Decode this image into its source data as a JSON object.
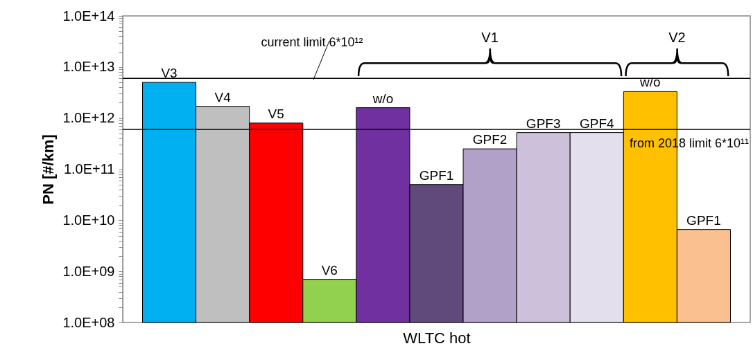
{
  "chart_data": {
    "type": "bar",
    "xlabel": "WLTC hot",
    "ylabel": "PN [#/km]",
    "categories": [
      "V3",
      "V4",
      "V5",
      "V6",
      "w/o",
      "GPF1",
      "GPF2",
      "GPF3",
      "GPF4",
      "w/o",
      "GPF1"
    ],
    "values": [
      5000000000000.0,
      1700000000000.0,
      800000000000.0,
      700000000.0,
      1600000000000.0,
      50000000000.0,
      250000000000.0,
      520000000000.0,
      520000000000.0,
      3300000000000.0,
      6600000000.0
    ],
    "colors": [
      "#00b0f0",
      "#bfbfbf",
      "#ff0000",
      "#92d050",
      "#7030a0",
      "#604a7b",
      "#b1a0c7",
      "#ccc0da",
      "#e4dfec",
      "#ffc000",
      "#fac090"
    ],
    "log": "y",
    "ylim": [
      100000000.0,
      100000000000000.0
    ],
    "yticks": [
      {
        "value": 100000000.0,
        "label": "1.0E+08"
      },
      {
        "value": 200000000.0,
        "label": null
      },
      {
        "value": 300000000.0,
        "label": null
      },
      {
        "value": 400000000.0,
        "label": null
      },
      {
        "value": 500000000.0,
        "label": null
      },
      {
        "value": 600000000.0,
        "label": null
      },
      {
        "value": 700000000.0,
        "label": null
      },
      {
        "value": 800000000.0,
        "label": null
      },
      {
        "value": 900000000.0,
        "label": null
      },
      {
        "value": 1000000000.0,
        "label": "1.0E+09"
      },
      {
        "value": 2000000000.0,
        "label": null
      },
      {
        "value": 3000000000.0,
        "label": null
      },
      {
        "value": 4000000000.0,
        "label": null
      },
      {
        "value": 5000000000.0,
        "label": null
      },
      {
        "value": 6000000000.0,
        "label": null
      },
      {
        "value": 7000000000.0,
        "label": null
      },
      {
        "value": 8000000000.0,
        "label": null
      },
      {
        "value": 9000000000.0,
        "label": null
      },
      {
        "value": 10000000000.0,
        "label": "1.0E+10"
      },
      {
        "value": 20000000000.0,
        "label": null
      },
      {
        "value": 30000000000.0,
        "label": null
      },
      {
        "value": 40000000000.0,
        "label": null
      },
      {
        "value": 50000000000.0,
        "label": null
      },
      {
        "value": 60000000000.0,
        "label": null
      },
      {
        "value": 70000000000.0,
        "label": null
      },
      {
        "value": 80000000000.0,
        "label": null
      },
      {
        "value": 90000000000.0,
        "label": null
      },
      {
        "value": 100000000000.0,
        "label": "1.0E+11"
      },
      {
        "value": 200000000000.0,
        "label": null
      },
      {
        "value": 300000000000.0,
        "label": null
      },
      {
        "value": 400000000000.0,
        "label": null
      },
      {
        "value": 500000000000.0,
        "label": null
      },
      {
        "value": 600000000000.0,
        "label": null
      },
      {
        "value": 700000000000.0,
        "label": null
      },
      {
        "value": 800000000000.0,
        "label": null
      },
      {
        "value": 900000000000.0,
        "label": null
      },
      {
        "value": 1000000000000.0,
        "label": "1.0E+12"
      },
      {
        "value": 2000000000000.0,
        "label": null
      },
      {
        "value": 3000000000000.0,
        "label": null
      },
      {
        "value": 4000000000000.0,
        "label": null
      },
      {
        "value": 5000000000000.0,
        "label": null
      },
      {
        "value": 6000000000000.0,
        "label": null
      },
      {
        "value": 7000000000000.0,
        "label": null
      },
      {
        "value": 8000000000000.0,
        "label": null
      },
      {
        "value": 9000000000000.0,
        "label": null
      },
      {
        "value": 10000000000000.0,
        "label": "1.0E+13"
      },
      {
        "value": 20000000000000.0,
        "label": null
      },
      {
        "value": 30000000000000.0,
        "label": null
      },
      {
        "value": 40000000000000.0,
        "label": null
      },
      {
        "value": 50000000000000.0,
        "label": null
      },
      {
        "value": 60000000000000.0,
        "label": null
      },
      {
        "value": 70000000000000.0,
        "label": null
      },
      {
        "value": 80000000000000.0,
        "label": null
      },
      {
        "value": 90000000000000.0,
        "label": null
      },
      {
        "value": 100000000000000.0,
        "label": "1.0E+14"
      }
    ],
    "ref_lines": [
      {
        "axis": "y",
        "value": 6000000000000.0,
        "label": "current limit 6*10¹²",
        "color": "#000000"
      },
      {
        "axis": "y",
        "value": 600000000000.0,
        "label": "from 2018 limit 6*10¹¹",
        "color": "#000000"
      }
    ],
    "annotations": [
      "V1",
      "V2"
    ],
    "grid": false
  }
}
